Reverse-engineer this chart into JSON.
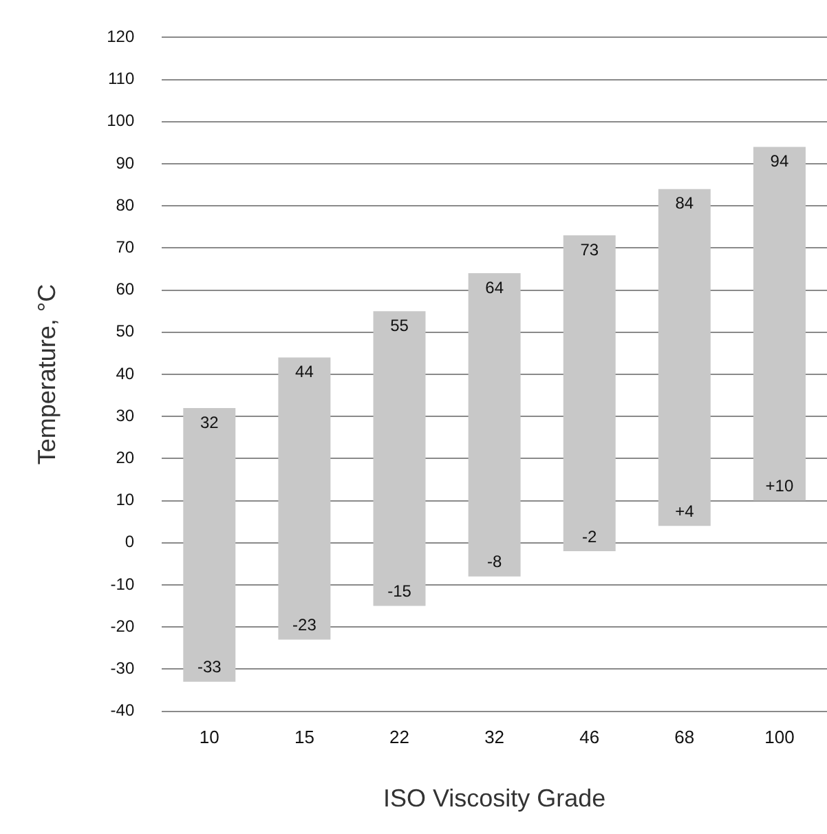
{
  "chart_data": {
    "type": "bar",
    "xlabel": "ISO Viscosity Grade",
    "ylabel": "Temperature, °C",
    "categories": [
      "10",
      "15",
      "22",
      "32",
      "46",
      "68",
      "100"
    ],
    "values": [
      65,
      67,
      70,
      72,
      75,
      80,
      84
    ],
    "base": [
      -33,
      -23,
      -15,
      -8,
      -2,
      4,
      10
    ],
    "color": "#c8c8c8",
    "ylim": [
      -40,
      120
    ],
    "yticks": [
      -40,
      -30,
      -20,
      -10,
      0,
      10,
      20,
      30,
      40,
      50,
      60,
      70,
      80,
      90,
      100,
      110,
      120
    ],
    "grid": "y",
    "annotations": [
      {
        "text": "32",
        "x": "10",
        "y": 32
      },
      {
        "text": "-33",
        "x": "10",
        "y": -33
      },
      {
        "text": "44",
        "x": "15",
        "y": 44
      },
      {
        "text": "-23",
        "x": "15",
        "y": -23
      },
      {
        "text": "55",
        "x": "22",
        "y": 55
      },
      {
        "text": "-15",
        "x": "22",
        "y": -15
      },
      {
        "text": "64",
        "x": "32",
        "y": 64
      },
      {
        "text": "-8",
        "x": "32",
        "y": -8
      },
      {
        "text": "73",
        "x": "46",
        "y": 73
      },
      {
        "text": "-2",
        "x": "46",
        "y": -2
      },
      {
        "text": "84",
        "x": "68",
        "y": 84
      },
      {
        "text": "+4",
        "x": "68",
        "y": 4
      },
      {
        "text": "94",
        "x": "100",
        "y": 94
      },
      {
        "text": "+10",
        "x": "100",
        "y": 10
      }
    ]
  }
}
